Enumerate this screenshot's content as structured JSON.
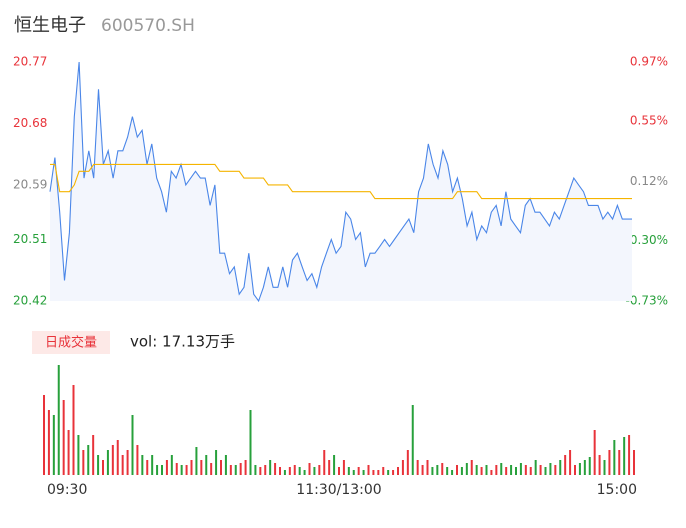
{
  "chart_data": [
    {
      "type": "line",
      "title": "恒生电子",
      "subtitle": "600570.SH",
      "x": [
        0,
        2,
        4,
        6,
        8,
        10,
        12,
        14,
        16,
        18,
        20,
        22,
        24,
        26,
        28,
        30,
        32,
        34,
        36,
        38,
        40,
        42,
        44,
        46,
        48,
        50,
        52,
        54,
        56,
        58,
        60,
        62,
        64,
        66,
        68,
        70,
        72,
        74,
        76,
        78,
        80,
        82,
        84,
        86,
        88,
        90,
        92,
        94,
        96,
        98,
        100,
        102,
        104,
        106,
        108,
        110,
        112,
        114,
        116,
        118,
        120,
        122,
        124,
        126,
        128,
        130,
        132,
        134,
        136,
        138,
        140,
        142,
        144,
        146,
        148,
        150,
        152,
        154,
        156,
        158,
        160,
        162,
        164,
        166,
        168,
        170,
        172,
        174,
        176,
        178,
        180,
        182,
        184,
        186,
        188,
        190,
        192,
        194,
        196,
        198,
        200,
        202,
        204,
        206,
        208,
        210,
        212,
        214,
        216,
        218,
        220,
        222,
        224,
        226,
        228,
        230,
        232,
        234,
        236,
        238,
        240
      ],
      "xlim": [
        0,
        240
      ],
      "series": [
        {
          "color": "#4a86e8",
          "fill": "#f3f6fd",
          "values": [
            20.58,
            20.63,
            20.55,
            20.45,
            20.52,
            20.69,
            20.77,
            20.6,
            20.64,
            20.6,
            20.73,
            20.62,
            20.64,
            20.6,
            20.64,
            20.64,
            20.66,
            20.69,
            20.66,
            20.67,
            20.62,
            20.65,
            20.6,
            20.58,
            20.55,
            20.61,
            20.6,
            20.62,
            20.59,
            20.6,
            20.61,
            20.6,
            20.6,
            20.56,
            20.59,
            20.49,
            20.49,
            20.46,
            20.47,
            20.43,
            20.44,
            20.49,
            20.43,
            20.42,
            20.44,
            20.47,
            20.44,
            20.44,
            20.47,
            20.44,
            20.48,
            20.49,
            20.47,
            20.45,
            20.46,
            20.44,
            20.47,
            20.49,
            20.51,
            20.49,
            20.5,
            20.55,
            20.54,
            20.51,
            20.52,
            20.47,
            20.49,
            20.49,
            20.5,
            20.51,
            20.5,
            20.51,
            20.52,
            20.53,
            20.54,
            20.52,
            20.58,
            20.6,
            20.65,
            20.62,
            20.6,
            20.64,
            20.62,
            20.58,
            20.6,
            20.57,
            20.53,
            20.55,
            20.51,
            20.53,
            20.52,
            20.55,
            20.56,
            20.53,
            20.58,
            20.54,
            20.53,
            20.52,
            20.56,
            20.57,
            20.55,
            20.55,
            20.54,
            20.53,
            20.55,
            20.54,
            20.56,
            20.58,
            20.6,
            20.59,
            20.58,
            20.56,
            20.56,
            20.56,
            20.54,
            20.55,
            20.54,
            20.56,
            20.54,
            20.54,
            20.54
          ]
        },
        {
          "color": "#f5b400",
          "values": [
            20.62,
            20.62,
            20.58,
            20.58,
            20.58,
            20.59,
            20.61,
            20.61,
            20.61,
            20.62,
            20.62,
            20.62,
            20.62,
            20.62,
            20.62,
            20.62,
            20.62,
            20.62,
            20.62,
            20.62,
            20.62,
            20.62,
            20.62,
            20.62,
            20.62,
            20.62,
            20.62,
            20.62,
            20.62,
            20.62,
            20.62,
            20.62,
            20.62,
            20.62,
            20.62,
            20.61,
            20.61,
            20.61,
            20.61,
            20.61,
            20.6,
            20.6,
            20.6,
            20.6,
            20.6,
            20.59,
            20.59,
            20.59,
            20.59,
            20.59,
            20.58,
            20.58,
            20.58,
            20.58,
            20.58,
            20.58,
            20.58,
            20.58,
            20.58,
            20.58,
            20.58,
            20.58,
            20.58,
            20.58,
            20.58,
            20.58,
            20.58,
            20.57,
            20.57,
            20.57,
            20.57,
            20.57,
            20.57,
            20.57,
            20.57,
            20.57,
            20.57,
            20.57,
            20.57,
            20.57,
            20.57,
            20.57,
            20.57,
            20.57,
            20.58,
            20.58,
            20.58,
            20.58,
            20.58,
            20.57,
            20.57,
            20.57,
            20.57,
            20.57,
            20.57,
            20.57,
            20.57,
            20.57,
            20.57,
            20.57,
            20.57,
            20.57,
            20.57,
            20.57,
            20.57,
            20.57,
            20.57,
            20.57,
            20.57,
            20.57,
            20.57,
            20.57,
            20.57,
            20.57,
            20.57,
            20.57,
            20.57,
            20.57,
            20.57,
            20.57,
            20.57
          ]
        }
      ],
      "ylim": [
        20.42,
        20.77
      ],
      "yticks": [
        20.77,
        20.68,
        20.59,
        20.51,
        20.42
      ],
      "y2lim": [
        -0.73,
        0.97
      ],
      "y2ticks": [
        {
          "value": 0.97,
          "label": "0.97%"
        },
        {
          "value": 0.55,
          "label": "0.55%"
        },
        {
          "value": 0.12,
          "label": "0.12%"
        },
        {
          "value": -0.3,
          "label": "-0.30%"
        },
        {
          "value": -0.73,
          "label": "-0.73%"
        }
      ],
      "up_color": "#e8333a",
      "down_color": "#27a03b",
      "flat_color": "#888888"
    },
    {
      "type": "bar",
      "button": "日成交量",
      "annotation": "vol: 17.13万手",
      "x": [
        0,
        2,
        4,
        6,
        8,
        10,
        12,
        14,
        16,
        18,
        20,
        22,
        24,
        26,
        28,
        30,
        32,
        34,
        36,
        38,
        40,
        42,
        44,
        46,
        48,
        50,
        52,
        54,
        56,
        58,
        60,
        62,
        64,
        66,
        68,
        70,
        72,
        74,
        76,
        78,
        80,
        82,
        84,
        86,
        88,
        90,
        92,
        94,
        96,
        98,
        100,
        102,
        104,
        106,
        108,
        110,
        112,
        114,
        116,
        118,
        120,
        122,
        124,
        126,
        128,
        130,
        132,
        134,
        136,
        138,
        140,
        142,
        144,
        146,
        148,
        150,
        152,
        154,
        156,
        158,
        160,
        162,
        164,
        166,
        168,
        170,
        172,
        174,
        176,
        178,
        180,
        182,
        184,
        186,
        188,
        190,
        192,
        194,
        196,
        198,
        200,
        202,
        204,
        206,
        208,
        210,
        212,
        214,
        216,
        218,
        220,
        222,
        224,
        226,
        228,
        230,
        232,
        234,
        236,
        238,
        240
      ],
      "values": [
        5600,
        4550,
        4200,
        7700,
        5250,
        3150,
        6300,
        2800,
        1750,
        2100,
        2800,
        1400,
        1050,
        1750,
        2100,
        2450,
        1400,
        1750,
        4200,
        2100,
        1400,
        1050,
        1400,
        700,
        700,
        1050,
        1400,
        840,
        700,
        700,
        1050,
        1960,
        1050,
        1400,
        840,
        1750,
        1050,
        1400,
        700,
        700,
        840,
        1050,
        4550,
        700,
        560,
        700,
        1050,
        840,
        560,
        350,
        560,
        700,
        560,
        350,
        840,
        560,
        700,
        1750,
        1050,
        1400,
        560,
        1050,
        560,
        350,
        560,
        350,
        700,
        350,
        350,
        560,
        350,
        350,
        560,
        1050,
        1750,
        4900,
        1050,
        700,
        1050,
        560,
        700,
        840,
        560,
        350,
        700,
        560,
        840,
        1050,
        700,
        560,
        700,
        350,
        700,
        840,
        560,
        700,
        560,
        840,
        700,
        560,
        1050,
        700,
        560,
        840,
        700,
        1050,
        1400,
        1750,
        700,
        840,
        1050,
        1260,
        3150,
        1400,
        1050,
        1750,
        2450,
        1750,
        2660,
        2800,
        1750
      ],
      "ylim": [
        0,
        7700
      ],
      "xlim": [
        0,
        240
      ],
      "xticks": [
        {
          "value": 0,
          "label": "09:30"
        },
        {
          "value": 120,
          "label": "11:30/13:00"
        },
        {
          "value": 240,
          "label": "15:00"
        }
      ],
      "up_color": "#e8333a",
      "down_color": "#27a03b"
    }
  ]
}
